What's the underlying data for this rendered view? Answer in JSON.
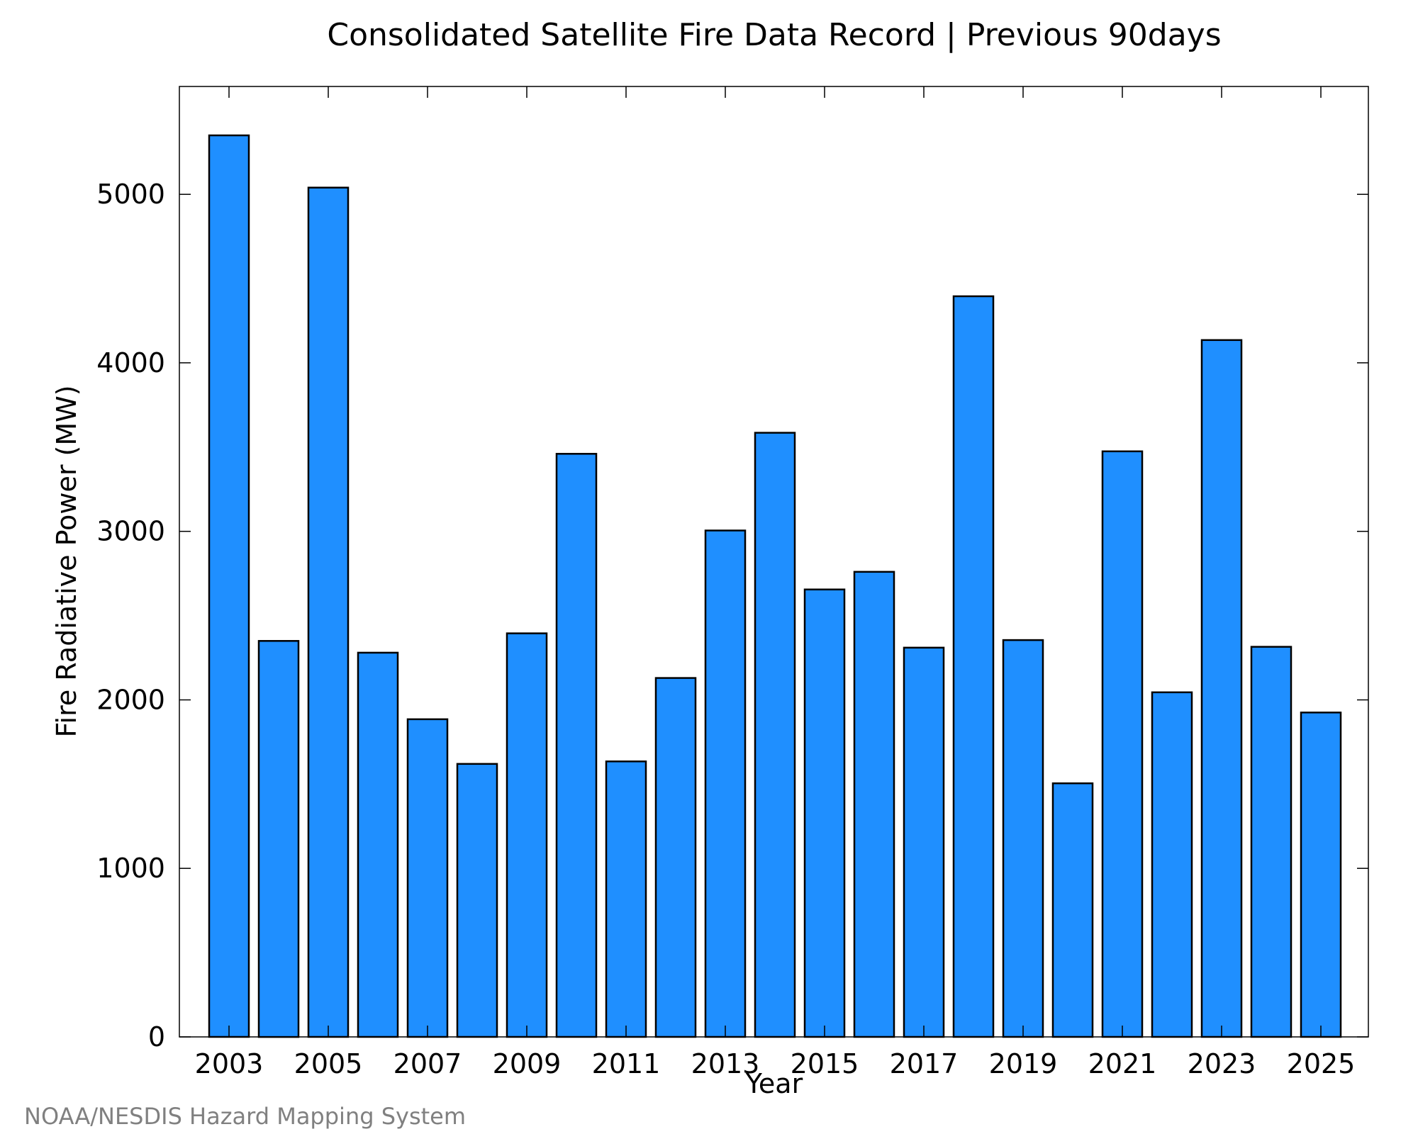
{
  "chart_data": {
    "type": "bar",
    "title": "Consolidated Satellite Fire Data Record | Previous 90days",
    "xlabel": "Year",
    "ylabel": "Fire Radiative Power (MW)",
    "categories": [
      "2003",
      "2004",
      "2005",
      "2006",
      "2007",
      "2008",
      "2009",
      "2010",
      "2011",
      "2012",
      "2013",
      "2014",
      "2015",
      "2016",
      "2017",
      "2018",
      "2019",
      "2020",
      "2021",
      "2022",
      "2023",
      "2024",
      "2025"
    ],
    "values": [
      5350,
      2350,
      5040,
      2280,
      1885,
      1620,
      2395,
      3460,
      1635,
      2130,
      3005,
      3585,
      2655,
      2760,
      2310,
      4395,
      2355,
      1505,
      3475,
      2045,
      4135,
      2315,
      1925
    ],
    "xticks": [
      "2003",
      "2005",
      "2007",
      "2009",
      "2011",
      "2013",
      "2015",
      "2017",
      "2019",
      "2021",
      "2023",
      "2025"
    ],
    "yticks": [
      0,
      1000,
      2000,
      3000,
      4000,
      5000
    ],
    "ylim": [
      0,
      5640
    ],
    "bar_color": "#1f8fff",
    "bar_edge_color": "#000000",
    "grid": false,
    "legend": "none"
  },
  "footer": {
    "credit": "NOAA/NESDIS Hazard Mapping System"
  }
}
